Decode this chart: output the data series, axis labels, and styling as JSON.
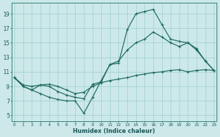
{
  "xlabel": "Humidex (Indice chaleur)",
  "bg_color": "#cce8e8",
  "line_color": "#1e6b5e",
  "grid_color": "#9ecece",
  "x_ticks": [
    0,
    1,
    2,
    3,
    4,
    5,
    6,
    7,
    8,
    9,
    10,
    11,
    12,
    13,
    14,
    15,
    16,
    17,
    18,
    19,
    20,
    21,
    22,
    23
  ],
  "y_ticks": [
    5,
    7,
    9,
    11,
    13,
    15,
    17,
    19
  ],
  "xlim": [
    -0.3,
    23.3
  ],
  "ylim": [
    4.2,
    20.5
  ],
  "series1": {
    "x": [
      0,
      1,
      2,
      3,
      4,
      5,
      6,
      7,
      8,
      9,
      10,
      11,
      12,
      13,
      14,
      15,
      16,
      17,
      18,
      19,
      20,
      21,
      22,
      23
    ],
    "y": [
      10.2,
      9.0,
      8.5,
      8.0,
      7.5,
      7.2,
      7.0,
      7.0,
      5.3,
      7.5,
      9.8,
      12.0,
      12.2,
      16.8,
      19.0,
      19.3,
      19.6,
      17.5,
      15.5,
      15.2,
      15.0,
      14.2,
      12.5,
      11.2
    ]
  },
  "series2": {
    "x": [
      0,
      1,
      2,
      3,
      4,
      5,
      6,
      7,
      8,
      9,
      10,
      11,
      12,
      13,
      14,
      15,
      16,
      17,
      18,
      19,
      20,
      21,
      22,
      23
    ],
    "y": [
      10.2,
      9.0,
      8.5,
      9.2,
      9.0,
      8.3,
      7.8,
      7.5,
      7.3,
      9.3,
      9.6,
      12.0,
      12.5,
      14.0,
      15.0,
      15.5,
      16.5,
      15.8,
      15.0,
      14.5,
      15.0,
      14.0,
      12.5,
      11.2
    ]
  },
  "series3": {
    "x": [
      0,
      1,
      2,
      3,
      4,
      5,
      6,
      7,
      8,
      9,
      10,
      11,
      12,
      13,
      14,
      15,
      16,
      17,
      18,
      19,
      20,
      21,
      22,
      23
    ],
    "y": [
      10.2,
      9.2,
      9.0,
      9.2,
      9.3,
      9.0,
      8.5,
      8.0,
      8.2,
      9.0,
      9.5,
      9.8,
      10.0,
      10.2,
      10.5,
      10.7,
      10.9,
      11.0,
      11.2,
      11.3,
      11.0,
      11.2,
      11.3,
      11.2
    ]
  }
}
